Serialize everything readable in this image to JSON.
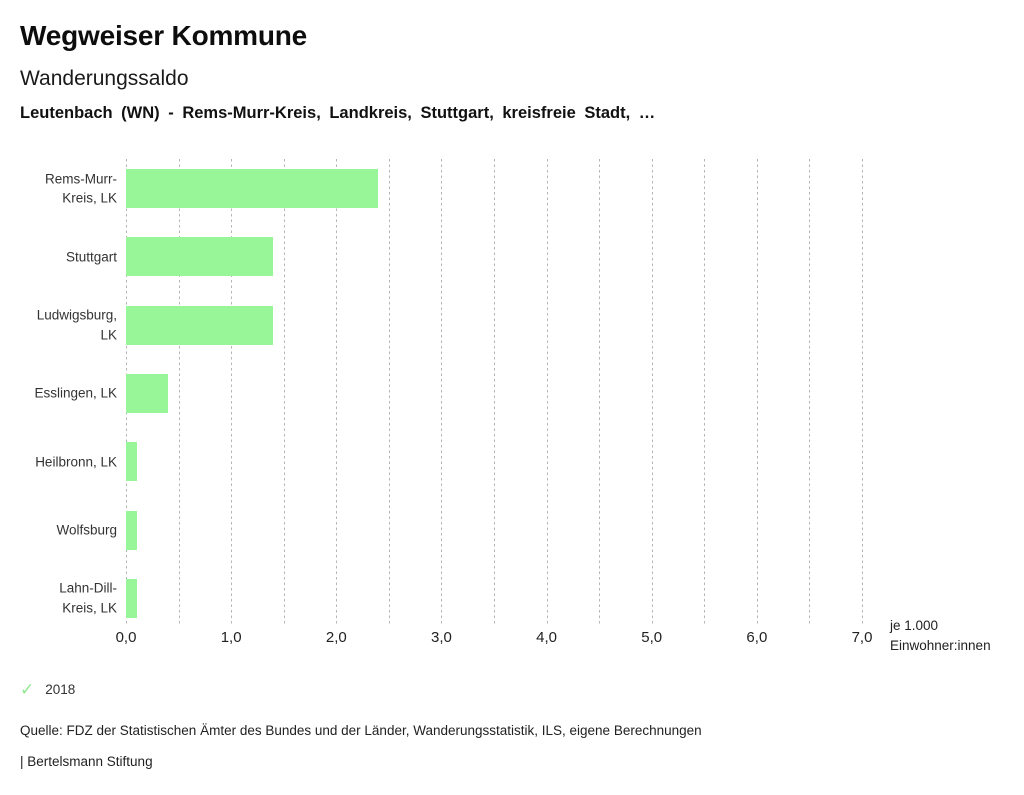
{
  "header": {
    "app_title": "Wegweiser Kommune",
    "chart_title": "Wanderungssaldo",
    "subtitle": "Leutenbach (WN) - Rems-Murr-Kreis, Landkreis, Stuttgart, kreisfreie Stadt, …"
  },
  "chart_data": {
    "type": "bar",
    "orientation": "horizontal",
    "title": "Wanderungssaldo",
    "categories": [
      "Rems-Murr-Kreis, LK",
      "Stuttgart",
      "Ludwigsburg, LK",
      "Esslingen, LK",
      "Heilbronn, LK",
      "Wolfsburg",
      "Lahn-Dill-Kreis, LK"
    ],
    "categories_display": [
      [
        "Rems-Murr-",
        "Kreis, LK"
      ],
      [
        "Stuttgart"
      ],
      [
        "Ludwigsburg,",
        "LK"
      ],
      [
        "Esslingen, LK"
      ],
      [
        "Heilbronn, LK"
      ],
      [
        "Wolfsburg"
      ],
      [
        "Lahn-Dill-",
        "Kreis, LK"
      ]
    ],
    "series": [
      {
        "name": "2018",
        "values": [
          2.4,
          1.4,
          1.4,
          0.4,
          0.1,
          0.1,
          0.1
        ]
      }
    ],
    "xlim": [
      0,
      7.0
    ],
    "x_tick_labels": [
      "0,0",
      "1,0",
      "2,0",
      "3,0",
      "4,0",
      "5,0",
      "6,0",
      "7,0"
    ],
    "x_tick_step": 1.0,
    "grid_step": 0.5,
    "grid": "vertical-dashed",
    "unit_label": "je 1.000 Einwohner:innen",
    "unit_label_lines": [
      "je 1.000",
      "Einwohner:innen"
    ],
    "legend_position": "bottom-left",
    "bar_color": "#98f598",
    "grid_color": "#b4b4b4"
  },
  "legend": {
    "check_glyph": "✓",
    "check_color": "#90e890",
    "year": "2018"
  },
  "footer": {
    "source": "Quelle: FDZ der Statistischen Ämter des Bundes und der Länder, Wanderungsstatistik, ILS, eigene Berechnungen",
    "brand": "| Bertelsmann Stiftung"
  }
}
